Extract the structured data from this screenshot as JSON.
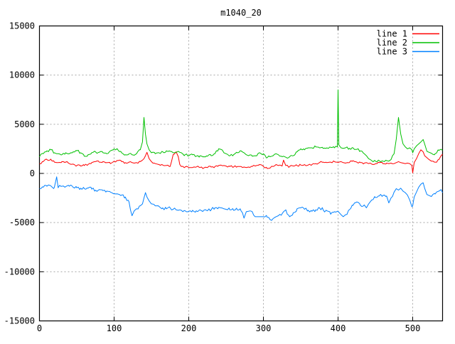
{
  "title": "m1040_20",
  "colors": {
    "background": "#ffffff",
    "axis": "#000000",
    "grid": "#a8a8a8",
    "line1": "#ff0000",
    "line2": "#00c000",
    "line3": "#0080ff"
  },
  "legend": [
    {
      "label": "line 1",
      "color": "#ff0000"
    },
    {
      "label": "line 2",
      "color": "#00c000"
    },
    {
      "label": "line 3",
      "color": "#0080ff"
    }
  ],
  "chart_data": {
    "type": "line",
    "title": "m1040_20",
    "xlabel": "",
    "ylabel": "",
    "xlim": [
      0,
      540
    ],
    "ylim": [
      -15000,
      15000
    ],
    "grid": true,
    "legend_position": "top-right-inside",
    "axes": {
      "x": {
        "ticks": [
          0,
          100,
          200,
          300,
          400,
          500
        ],
        "labels": [
          "0",
          "100",
          "200",
          "300",
          "400",
          "500"
        ]
      },
      "y": {
        "ticks": [
          15000,
          10000,
          5000,
          0,
          -5000,
          -10000,
          -15000
        ],
        "labels": [
          "15000",
          "10000",
          "5000",
          "0",
          "-5000",
          "-10000",
          "-15000"
        ]
      }
    },
    "x": [
      0,
      5,
      10,
      15,
      20,
      23,
      25,
      30,
      35,
      40,
      45,
      50,
      55,
      60,
      65,
      70,
      75,
      80,
      85,
      90,
      95,
      100,
      105,
      110,
      115,
      120,
      124,
      127,
      130,
      135,
      138,
      140,
      142,
      144,
      147,
      150,
      155,
      160,
      165,
      170,
      175,
      179,
      183,
      186,
      188,
      190,
      195,
      200,
      205,
      210,
      215,
      220,
      225,
      230,
      235,
      240,
      243,
      247,
      250,
      255,
      260,
      265,
      270,
      274,
      277,
      280,
      285,
      289,
      295,
      300,
      305,
      309,
      313,
      317,
      320,
      325,
      327,
      330,
      335,
      340,
      345,
      350,
      355,
      360,
      365,
      370,
      375,
      380,
      385,
      390,
      395,
      399,
      400,
      401,
      404,
      407,
      410,
      415,
      420,
      425,
      430,
      435,
      438,
      441,
      445,
      450,
      455,
      460,
      465,
      468,
      471,
      475,
      478,
      481,
      484,
      487,
      490,
      493,
      496,
      499,
      500,
      502,
      505,
      508,
      511,
      514,
      516,
      519,
      522,
      525,
      530,
      535,
      538,
      540
    ],
    "series": [
      {
        "name": "line 1",
        "color": "#ff0000",
        "noise": 110,
        "values": [
          1000,
          1200,
          1400,
          1450,
          1150,
          1100,
          1100,
          1200,
          1150,
          1000,
          950,
          800,
          750,
          800,
          900,
          1100,
          1200,
          1150,
          1200,
          1100,
          1000,
          1250,
          1300,
          1200,
          1100,
          1150,
          1100,
          1050,
          1100,
          1200,
          1350,
          1500,
          1800,
          2150,
          1500,
          1200,
          1000,
          900,
          850,
          800,
          700,
          1900,
          2200,
          1700,
          900,
          700,
          650,
          600,
          600,
          650,
          600,
          550,
          600,
          650,
          700,
          800,
          850,
          800,
          750,
          700,
          650,
          700,
          700,
          650,
          600,
          650,
          700,
          750,
          900,
          700,
          500,
          550,
          700,
          900,
          800,
          750,
          1350,
          800,
          700,
          750,
          800,
          850,
          900,
          850,
          900,
          1000,
          1100,
          1150,
          1100,
          1150,
          1200,
          1150,
          1100,
          1150,
          1200,
          1100,
          1050,
          1100,
          1300,
          1150,
          1100,
          1050,
          1100,
          1000,
          950,
          1000,
          1100,
          1000,
          1050,
          1000,
          1050,
          1000,
          1100,
          1200,
          1100,
          1050,
          1000,
          1050,
          1000,
          800,
          50,
          1100,
          1500,
          2000,
          2400,
          2200,
          1800,
          1600,
          1400,
          1250,
          1150,
          1400,
          1800,
          1950
        ]
      },
      {
        "name": "line 2",
        "color": "#00c000",
        "noise": 140,
        "values": [
          1700,
          2000,
          2300,
          2400,
          2100,
          2000,
          2000,
          1900,
          2100,
          2000,
          2200,
          2300,
          2100,
          1750,
          1900,
          2100,
          2200,
          2150,
          2100,
          2000,
          2300,
          2500,
          2400,
          2100,
          1900,
          2000,
          1900,
          1850,
          2000,
          2400,
          3200,
          5700,
          4000,
          3000,
          2400,
          2100,
          2000,
          2100,
          2200,
          2300,
          2250,
          2100,
          2150,
          2250,
          2150,
          2100,
          1900,
          1800,
          1900,
          1750,
          1800,
          1700,
          1750,
          1800,
          2000,
          2500,
          2450,
          2100,
          2000,
          1800,
          1900,
          2100,
          2300,
          2100,
          1900,
          1800,
          1750,
          1800,
          2100,
          2000,
          1600,
          1700,
          1800,
          2000,
          1900,
          1700,
          1750,
          1650,
          1700,
          1800,
          2200,
          2500,
          2400,
          2600,
          2600,
          2700,
          2600,
          2550,
          2600,
          2650,
          2600,
          2700,
          8500,
          2900,
          2600,
          2550,
          2600,
          2550,
          2600,
          2450,
          2300,
          2000,
          1800,
          1500,
          1300,
          1250,
          1300,
          1250,
          1300,
          1250,
          1400,
          2000,
          3500,
          5700,
          4000,
          3000,
          2700,
          2500,
          2600,
          2400,
          2100,
          2500,
          2800,
          3000,
          3200,
          3450,
          3000,
          2250,
          2150,
          2050,
          2000,
          2350,
          2450,
          2350
        ]
      },
      {
        "name": "line 3",
        "color": "#0080ff",
        "noise": 180,
        "values": [
          -1550,
          -1400,
          -1300,
          -1250,
          -1400,
          -350,
          -1450,
          -1300,
          -1350,
          -1300,
          -1400,
          -1450,
          -1500,
          -1550,
          -1500,
          -1600,
          -1700,
          -1650,
          -1750,
          -1800,
          -1900,
          -2050,
          -2100,
          -2200,
          -2400,
          -2900,
          -4300,
          -3800,
          -3600,
          -3300,
          -3100,
          -2500,
          -1950,
          -2400,
          -2800,
          -3100,
          -3300,
          -3350,
          -3500,
          -3600,
          -3500,
          -3650,
          -3700,
          -3750,
          -3700,
          -3750,
          -3800,
          -3850,
          -3750,
          -3800,
          -3700,
          -3750,
          -3800,
          -3700,
          -3500,
          -3450,
          -3500,
          -3600,
          -3650,
          -3700,
          -3750,
          -3700,
          -3800,
          -4550,
          -3900,
          -3850,
          -3900,
          -4400,
          -4400,
          -4400,
          -4450,
          -4700,
          -4600,
          -4400,
          -4300,
          -4100,
          -3900,
          -3700,
          -4400,
          -4000,
          -3600,
          -3500,
          -3650,
          -3750,
          -3850,
          -3700,
          -3500,
          -3700,
          -3800,
          -4150,
          -3900,
          -3850,
          -3850,
          -3950,
          -4200,
          -4400,
          -4200,
          -3700,
          -3250,
          -2900,
          -3250,
          -3200,
          -3500,
          -3100,
          -2700,
          -2450,
          -2300,
          -2250,
          -2300,
          -3000,
          -2500,
          -1900,
          -1550,
          -1700,
          -1500,
          -1800,
          -1950,
          -2200,
          -2700,
          -3400,
          -3300,
          -2400,
          -1900,
          -1400,
          -1100,
          -950,
          -1500,
          -2150,
          -2250,
          -2350,
          -2100,
          -1800,
          -1650,
          -1950
        ]
      }
    ]
  }
}
